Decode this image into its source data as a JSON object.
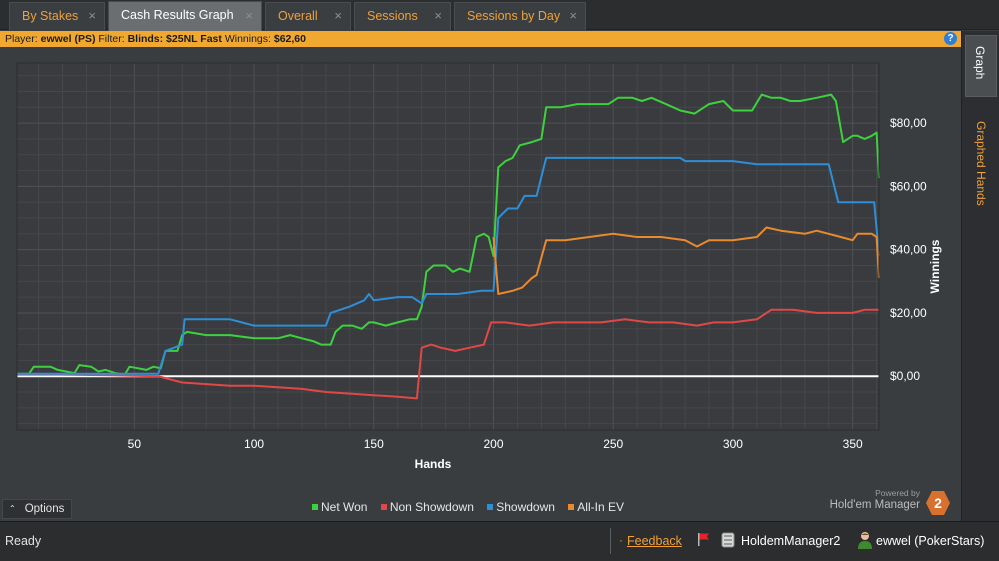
{
  "tabs": [
    {
      "label": "By Stakes",
      "active": false
    },
    {
      "label": "Cash Results Graph",
      "active": true
    },
    {
      "label": "Overall",
      "active": false
    },
    {
      "label": "Sessions",
      "active": false
    },
    {
      "label": "Sessions by Day",
      "active": false
    }
  ],
  "tab_close_glyph": "×",
  "filter_bar": {
    "player_label": "Player:",
    "player_value": "ewwel (PS)",
    "filter_label": "Filter:",
    "filter_value": "Blinds: $25NL Fast",
    "winnings_label": "Winnings:",
    "winnings_value": "$62,60",
    "help_icon": "question-circle-icon",
    "help_glyph": "?"
  },
  "side_tabs": [
    {
      "label": "Graph",
      "active": true
    },
    {
      "label": "Graphed Hands",
      "active": false
    }
  ],
  "options_button": {
    "label": "Options",
    "icon": "chevron-up-icon",
    "glyph": "⌃"
  },
  "powered_by": {
    "line1": "Powered by",
    "line2": "Hold'em Manager",
    "logo_text": "2"
  },
  "status_bar": {
    "ready": "Ready",
    "feedback": "Feedback",
    "database": "HoldemManager2",
    "player": "ewwel (PokerStars)",
    "bullet": "·"
  },
  "colors": {
    "net_won": "#3ed13e",
    "non_showdown": "#e04848",
    "showdown": "#2e8fd8",
    "all_in_ev": "#e88a2e",
    "accent": "#f0a037",
    "zero_line": "#ffffff",
    "grid": "#505356",
    "plot_bg": "#393b3e"
  },
  "chart_data": {
    "type": "line",
    "xlabel": "Hands",
    "ylabel": "Winnings",
    "xlim": [
      1,
      361
    ],
    "ylim": [
      -17,
      99
    ],
    "x_ticks": [
      50,
      100,
      150,
      200,
      250,
      300,
      350
    ],
    "y_ticks": [
      0,
      20,
      40,
      60,
      80
    ],
    "y_tick_labels": [
      "$0,00",
      "$20,00",
      "$40,00",
      "$60,00",
      "$80,00"
    ],
    "grid": true,
    "legend_position": "bottom-center",
    "series": [
      {
        "name": "Net Won",
        "color_key": "net_won",
        "points": [
          [
            1,
            0.8
          ],
          [
            6,
            0.8
          ],
          [
            8,
            3
          ],
          [
            15,
            3
          ],
          [
            18,
            2
          ],
          [
            25,
            1
          ],
          [
            27,
            3.5
          ],
          [
            32,
            3
          ],
          [
            35,
            1.5
          ],
          [
            38,
            2
          ],
          [
            42,
            1
          ],
          [
            46,
            0.5
          ],
          [
            48,
            3
          ],
          [
            55,
            2
          ],
          [
            58,
            3
          ],
          [
            61,
            2.5
          ],
          [
            63,
            8
          ],
          [
            68,
            8
          ],
          [
            70,
            13
          ],
          [
            72,
            14
          ],
          [
            80,
            13
          ],
          [
            90,
            13
          ],
          [
            100,
            12
          ],
          [
            110,
            12
          ],
          [
            115,
            13
          ],
          [
            120,
            12
          ],
          [
            125,
            11
          ],
          [
            128,
            10
          ],
          [
            132,
            10
          ],
          [
            134,
            14
          ],
          [
            137,
            16
          ],
          [
            141,
            16
          ],
          [
            145,
            15
          ],
          [
            148,
            17
          ],
          [
            150,
            17
          ],
          [
            155,
            16
          ],
          [
            160,
            17
          ],
          [
            165,
            18
          ],
          [
            168,
            18
          ],
          [
            170,
            22
          ],
          [
            172,
            33
          ],
          [
            175,
            35
          ],
          [
            180,
            35
          ],
          [
            183,
            33
          ],
          [
            186,
            34
          ],
          [
            190,
            33
          ],
          [
            193,
            44
          ],
          [
            196,
            45
          ],
          [
            198,
            44
          ],
          [
            200,
            38
          ],
          [
            202,
            66
          ],
          [
            205,
            68
          ],
          [
            208,
            69
          ],
          [
            211,
            73
          ],
          [
            216,
            74
          ],
          [
            220,
            75
          ],
          [
            222,
            85
          ],
          [
            228,
            85
          ],
          [
            235,
            86
          ],
          [
            240,
            86
          ],
          [
            248,
            86
          ],
          [
            252,
            88
          ],
          [
            258,
            88
          ],
          [
            262,
            87
          ],
          [
            266,
            88
          ],
          [
            272,
            86
          ],
          [
            278,
            84
          ],
          [
            284,
            83
          ],
          [
            290,
            86
          ],
          [
            296,
            87
          ],
          [
            300,
            84
          ],
          [
            304,
            84
          ],
          [
            308,
            84
          ],
          [
            312,
            89
          ],
          [
            316,
            88
          ],
          [
            320,
            88
          ],
          [
            324,
            87
          ],
          [
            328,
            87
          ],
          [
            335,
            88
          ],
          [
            341,
            89
          ],
          [
            343,
            87
          ],
          [
            346,
            74
          ],
          [
            350,
            76
          ],
          [
            352,
            76
          ],
          [
            355,
            75
          ],
          [
            358,
            76
          ],
          [
            360,
            77
          ],
          [
            361,
            62.6
          ]
        ]
      },
      {
        "name": "Non Showdown",
        "color_key": "non_showdown",
        "points": [
          [
            1,
            0.5
          ],
          [
            20,
            0.5
          ],
          [
            40,
            0.3
          ],
          [
            60,
            0
          ],
          [
            65,
            -1
          ],
          [
            70,
            -2
          ],
          [
            80,
            -2.5
          ],
          [
            90,
            -3
          ],
          [
            100,
            -3
          ],
          [
            110,
            -3.5
          ],
          [
            120,
            -4
          ],
          [
            130,
            -5
          ],
          [
            140,
            -5.5
          ],
          [
            150,
            -6
          ],
          [
            160,
            -6.5
          ],
          [
            168,
            -7
          ],
          [
            170,
            9
          ],
          [
            174,
            10
          ],
          [
            178,
            9
          ],
          [
            184,
            8
          ],
          [
            190,
            9
          ],
          [
            196,
            10
          ],
          [
            199,
            17
          ],
          [
            205,
            17
          ],
          [
            215,
            16
          ],
          [
            225,
            17
          ],
          [
            235,
            17
          ],
          [
            245,
            17
          ],
          [
            255,
            18
          ],
          [
            265,
            17
          ],
          [
            275,
            17
          ],
          [
            285,
            16
          ],
          [
            292,
            17
          ],
          [
            300,
            17
          ],
          [
            310,
            18
          ],
          [
            316,
            21
          ],
          [
            325,
            21
          ],
          [
            335,
            20
          ],
          [
            345,
            20
          ],
          [
            350,
            20
          ],
          [
            355,
            21
          ],
          [
            361,
            21
          ]
        ]
      },
      {
        "name": "Showdown",
        "color_key": "showdown",
        "points": [
          [
            1,
            0.8
          ],
          [
            20,
            0.8
          ],
          [
            40,
            0.8
          ],
          [
            60,
            0.8
          ],
          [
            63,
            8
          ],
          [
            70,
            10
          ],
          [
            71,
            18
          ],
          [
            80,
            18
          ],
          [
            90,
            18
          ],
          [
            100,
            16
          ],
          [
            110,
            16
          ],
          [
            120,
            16
          ],
          [
            130,
            16
          ],
          [
            132,
            20
          ],
          [
            140,
            22
          ],
          [
            146,
            24
          ],
          [
            148,
            26
          ],
          [
            150,
            24
          ],
          [
            160,
            25
          ],
          [
            166,
            25
          ],
          [
            170,
            23
          ],
          [
            172,
            26
          ],
          [
            185,
            26
          ],
          [
            195,
            27
          ],
          [
            200,
            27
          ],
          [
            202,
            50
          ],
          [
            206,
            53
          ],
          [
            210,
            53
          ],
          [
            213,
            57
          ],
          [
            218,
            57
          ],
          [
            222,
            69
          ],
          [
            230,
            69
          ],
          [
            240,
            69
          ],
          [
            250,
            69
          ],
          [
            260,
            69
          ],
          [
            270,
            69
          ],
          [
            278,
            69
          ],
          [
            280,
            68
          ],
          [
            290,
            68
          ],
          [
            300,
            68
          ],
          [
            310,
            67
          ],
          [
            322,
            67
          ],
          [
            330,
            67
          ],
          [
            340,
            67
          ],
          [
            344,
            55
          ],
          [
            350,
            55
          ],
          [
            355,
            55
          ],
          [
            359,
            55
          ],
          [
            361,
            38
          ]
        ]
      },
      {
        "name": "All-In EV",
        "color_key": "all_in_ev",
        "points": [
          [
            200,
            44
          ],
          [
            202,
            26
          ],
          [
            208,
            27
          ],
          [
            212,
            28
          ],
          [
            216,
            31
          ],
          [
            218,
            32
          ],
          [
            222,
            43
          ],
          [
            230,
            43
          ],
          [
            240,
            44
          ],
          [
            250,
            45
          ],
          [
            260,
            44
          ],
          [
            270,
            44
          ],
          [
            280,
            43
          ],
          [
            285,
            41
          ],
          [
            290,
            43
          ],
          [
            300,
            43
          ],
          [
            310,
            44
          ],
          [
            314,
            47
          ],
          [
            320,
            46
          ],
          [
            330,
            45
          ],
          [
            335,
            46
          ],
          [
            340,
            45
          ],
          [
            345,
            44
          ],
          [
            350,
            43
          ],
          [
            352,
            45
          ],
          [
            358,
            45
          ],
          [
            360,
            44
          ],
          [
            361,
            31
          ]
        ]
      }
    ]
  }
}
